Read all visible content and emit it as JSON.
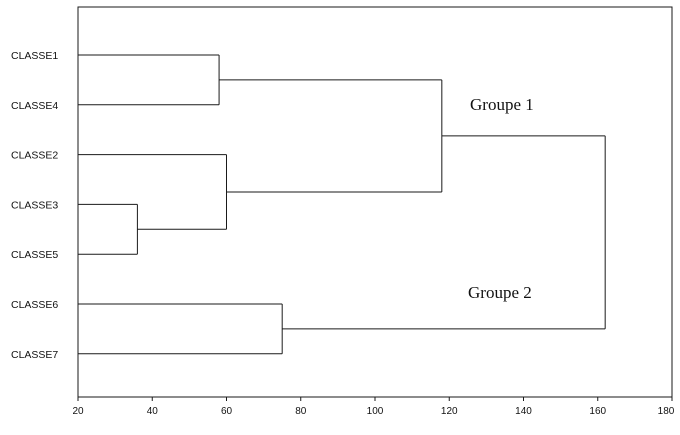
{
  "chart_data": {
    "type": "dendrogram",
    "orientation": "horizontal",
    "leaves": [
      "CLASSE1",
      "CLASSE4",
      "CLASSE2",
      "CLASSE3",
      "CLASSE5",
      "CLASSE6",
      "CLASSE7"
    ],
    "merges": [
      {
        "id": "m1",
        "children": [
          "CLASSE3",
          "CLASSE5"
        ],
        "height": 36
      },
      {
        "id": "m2",
        "children": [
          "CLASSE1",
          "CLASSE4"
        ],
        "height": 58
      },
      {
        "id": "m3",
        "children": [
          "CLASSE2",
          "m1"
        ],
        "height": 60
      },
      {
        "id": "m4",
        "children": [
          "CLASSE6",
          "CLASSE7"
        ],
        "height": 75
      },
      {
        "id": "m5",
        "children": [
          "m2",
          "m3"
        ],
        "height": 118
      },
      {
        "id": "m6",
        "children": [
          "m5",
          "m4"
        ],
        "height": 162
      }
    ],
    "xlim": [
      20,
      180
    ],
    "xticks": [
      20,
      40,
      60,
      80,
      100,
      120,
      140,
      160,
      180
    ],
    "annotations": [
      "Groupe 1",
      "Groupe 2"
    ],
    "grid": false,
    "colors": {
      "line": "#1a1a1a",
      "background": "#ffffff"
    }
  }
}
